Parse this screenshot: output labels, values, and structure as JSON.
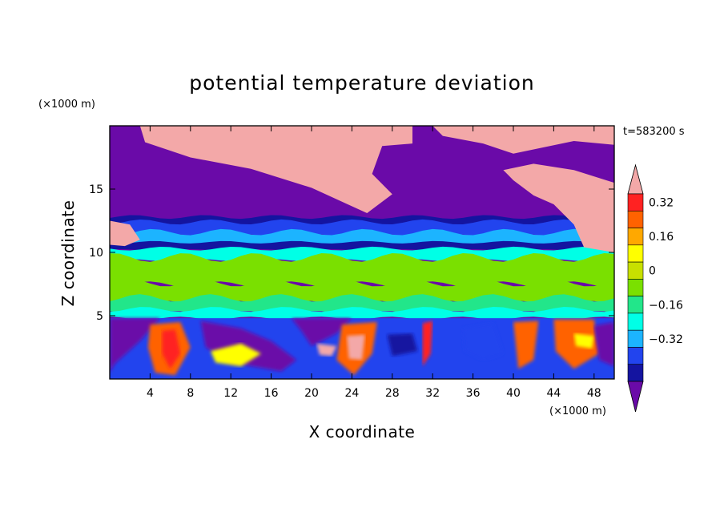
{
  "chart_data": {
    "type": "heatmap",
    "title": "potential temperature deviation",
    "xlabel": "X coordinate",
    "ylabel": "Z coordinate",
    "x_unit": "(×1000 m)",
    "y_unit": "(×1000 m)",
    "time_label": "t=583200 s",
    "xlim": [
      0,
      50
    ],
    "ylim": [
      0,
      20
    ],
    "x_ticks": [
      4,
      8,
      12,
      16,
      20,
      24,
      28,
      32,
      36,
      40,
      44,
      48
    ],
    "y_ticks": [
      5,
      10,
      15
    ],
    "colorbar": {
      "levels": [
        -0.48,
        -0.4,
        -0.32,
        -0.24,
        -0.16,
        -0.08,
        0,
        0.08,
        0.16,
        0.24,
        0.32,
        0.4,
        0.48
      ],
      "tick_labels": [
        {
          "value": 0.32,
          "label": "0.32"
        },
        {
          "value": 0.16,
          "label": "0.16"
        },
        {
          "value": 0,
          "label": "0"
        },
        {
          "value": -0.16,
          "label": "−0.16"
        },
        {
          "value": -0.32,
          "label": "−0.32"
        }
      ],
      "colors": [
        "#6a0aa8",
        "#1414a0",
        "#2244ee",
        "#1cb4ff",
        "#00ffe6",
        "#22e68a",
        "#7ae000",
        "#c8e000",
        "#ffff00",
        "#ffa800",
        "#ff6200",
        "#ff2222",
        "#f3a8a8"
      ]
    }
  }
}
